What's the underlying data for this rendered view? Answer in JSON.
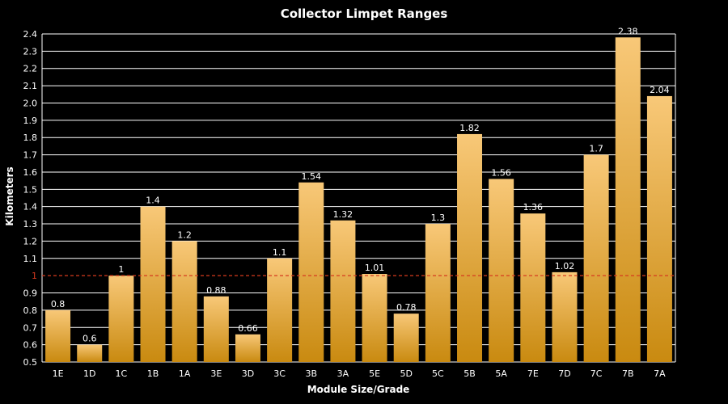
{
  "chart_data": {
    "type": "bar",
    "title": "Collector Limpet Ranges",
    "xlabel": "Module Size/Grade",
    "ylabel": "Kilometers",
    "categories": [
      "1E",
      "1D",
      "1C",
      "1B",
      "1A",
      "3E",
      "3D",
      "3C",
      "3B",
      "3A",
      "5E",
      "5D",
      "5C",
      "5B",
      "5A",
      "7E",
      "7D",
      "7C",
      "7B",
      "7A"
    ],
    "values": [
      0.8,
      0.6,
      1,
      1.4,
      1.2,
      0.88,
      0.66,
      1.1,
      1.54,
      1.32,
      1.01,
      0.78,
      1.3,
      1.82,
      1.56,
      1.36,
      1.02,
      1.7,
      2.38,
      2.04
    ],
    "value_labels": [
      "0.8",
      "0.6",
      "1",
      "1.4",
      "1.2",
      "0.88",
      "0.66",
      "1.1",
      "1.54",
      "1.32",
      "1.01",
      "0.78",
      "1.3",
      "1.82",
      "1.56",
      "1.36",
      "1.02",
      "1.7",
      "2.38",
      "2.04"
    ],
    "ylim": [
      0.5,
      2.4
    ],
    "yticks": [
      "0.5",
      "0.6",
      "0.7",
      "0.8",
      "0.9",
      "1",
      "1.1",
      "1.2",
      "1.3",
      "1.4",
      "1.5",
      "1.6",
      "1.7",
      "1.8",
      "1.9",
      "2.0",
      "2.1",
      "2.2",
      "2.3",
      "2.4"
    ],
    "reference_line": {
      "value": 1,
      "label": "1",
      "style": "dashed",
      "color": "#d63a1e"
    },
    "grid": true,
    "legend": "none",
    "colors": {
      "bar_top": "#f8c878",
      "bar_bottom": "#c98a10",
      "grid": "#ffffff",
      "background": "#000000"
    }
  }
}
